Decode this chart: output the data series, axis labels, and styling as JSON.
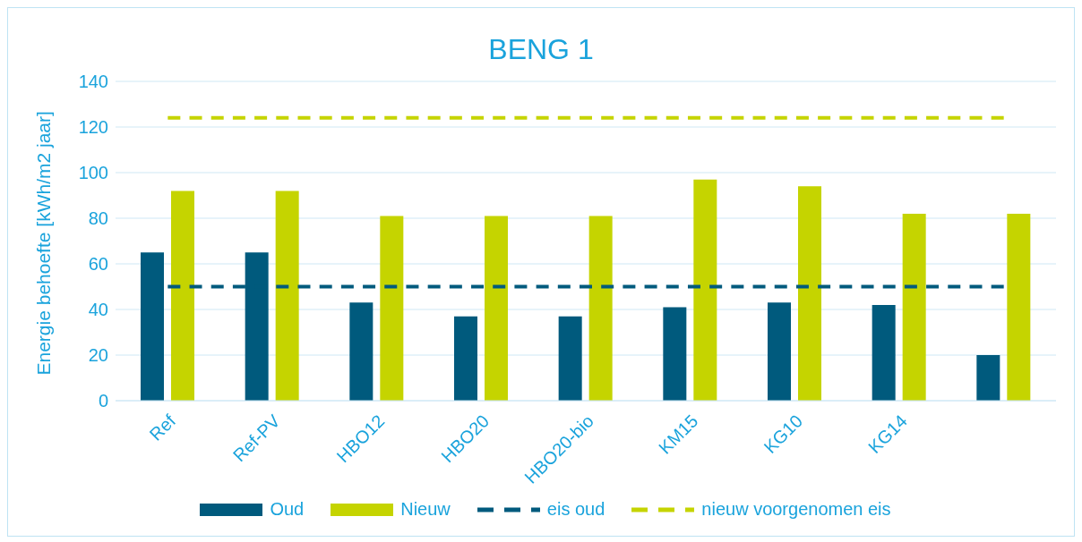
{
  "chart_data": {
    "type": "bar",
    "title": "BENG 1",
    "ylabel": "Energie behoefte [kWh/m2 jaar]",
    "categories": [
      "Ref",
      "Ref-PV",
      "HBO12",
      "HBO20",
      "HBO20-bio",
      "KM15",
      "KG10",
      "KG14",
      null
    ],
    "series": [
      {
        "name": "Oud",
        "color": "#005a7d",
        "values": [
          65,
          65,
          43,
          37,
          37,
          41,
          43,
          42,
          20
        ]
      },
      {
        "name": "Nieuw",
        "color": "#c5d400",
        "values": [
          92,
          92,
          81,
          81,
          81,
          97,
          94,
          82,
          82
        ]
      },
      {
        "name": "eis oud",
        "type": "line",
        "line_style": "dashed",
        "color": "#005a7d",
        "values": [
          50,
          50,
          50,
          50,
          50,
          50,
          50,
          50,
          50
        ]
      },
      {
        "name": "nieuw voorgenomen eis",
        "type": "line",
        "line_style": "dashed",
        "color": "#c5d400",
        "values": [
          124,
          124,
          124,
          124,
          124,
          124,
          124,
          124,
          124
        ]
      }
    ],
    "ylim": [
      0,
      140
    ],
    "yticks": [
      0,
      20,
      40,
      60,
      80,
      100,
      120,
      140
    ],
    "grid": "y",
    "legend": "bottom",
    "marker": "none"
  }
}
